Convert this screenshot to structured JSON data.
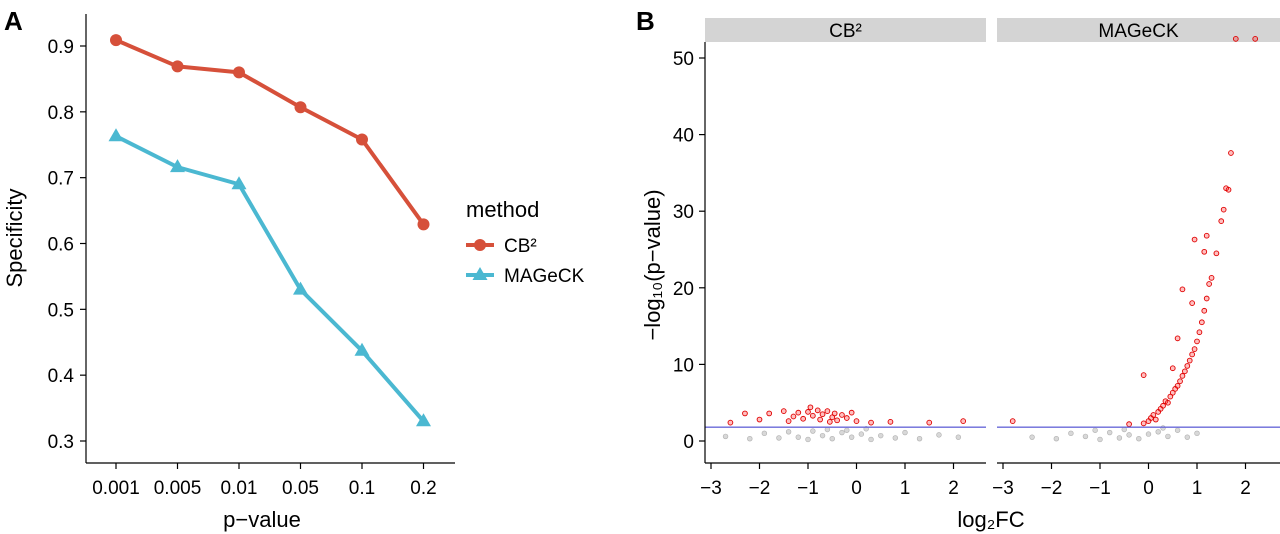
{
  "panels": {
    "a": "A",
    "b": "B"
  },
  "chart_data": [
    {
      "type": "line",
      "title": "",
      "xlabel": "p−value",
      "ylabel": "Specificity",
      "categories": [
        "0.001",
        "0.005",
        "0.01",
        "0.05",
        "0.1",
        "0.2"
      ],
      "ylim": [
        0.3,
        0.92
      ],
      "y_ticks": [
        "0.3",
        "0.4",
        "0.5",
        "0.6",
        "0.7",
        "0.8",
        "0.9"
      ],
      "legend": {
        "title": "method",
        "placement": "right"
      },
      "grid": false,
      "series": [
        {
          "name": "CB²",
          "color": "#d6503a",
          "marker": "circle",
          "values": [
            0.909,
            0.869,
            0.86,
            0.807,
            0.758,
            0.629
          ]
        },
        {
          "name": "MAGeCK",
          "color": "#4bb8d1",
          "marker": "triangle",
          "values": [
            0.763,
            0.716,
            0.69,
            0.53,
            0.437,
            0.33
          ]
        }
      ]
    },
    {
      "type": "scatter",
      "title": "",
      "xlabel": "log₂FC",
      "ylabel": "−log₁₀(p−value)",
      "x_ticks": [
        "−3",
        "−2",
        "−1",
        "0",
        "1",
        "2"
      ],
      "y_ticks": [
        "0",
        "10",
        "20",
        "30",
        "40",
        "50"
      ],
      "xlim": [
        -3.1,
        2.55
      ],
      "ylim": [
        -1.5,
        52.5
      ],
      "threshold": {
        "y": 1.8,
        "color": "#6a6ad8"
      },
      "grid": false,
      "facets": [
        {
          "label": "CB²",
          "significant": [
            [
              -2.3,
              3.6
            ],
            [
              -1.8,
              3.6
            ],
            [
              -1.5,
              3.9
            ],
            [
              -1.3,
              3.2
            ],
            [
              -1.2,
              3.7
            ],
            [
              -1.1,
              2.9
            ],
            [
              -1.0,
              3.8
            ],
            [
              -0.9,
              3.3
            ],
            [
              -0.8,
              4.0
            ],
            [
              -0.75,
              2.8
            ],
            [
              -0.7,
              3.5
            ],
            [
              -0.6,
              3.9
            ],
            [
              -0.5,
              3.1
            ],
            [
              -0.45,
              3.6
            ],
            [
              -0.4,
              2.7
            ],
            [
              -0.3,
              3.4
            ],
            [
              -0.2,
              3.0
            ],
            [
              -0.1,
              3.7
            ],
            [
              0.0,
              2.6
            ],
            [
              -2.0,
              2.8
            ],
            [
              -2.6,
              2.4
            ],
            [
              -0.95,
              4.4
            ],
            [
              -0.55,
              2.5
            ],
            [
              -1.4,
              2.6
            ],
            [
              0.3,
              2.4
            ],
            [
              0.7,
              2.5
            ],
            [
              1.5,
              2.4
            ],
            [
              2.2,
              2.6
            ]
          ],
          "nonsignificant": [
            [
              -2.7,
              0.6
            ],
            [
              -2.2,
              0.3
            ],
            [
              -1.9,
              1.0
            ],
            [
              -1.6,
              0.4
            ],
            [
              -1.4,
              1.2
            ],
            [
              -1.2,
              0.5
            ],
            [
              -1.0,
              0.2
            ],
            [
              -0.9,
              1.3
            ],
            [
              -0.7,
              0.7
            ],
            [
              -0.5,
              0.3
            ],
            [
              -0.3,
              1.1
            ],
            [
              -0.1,
              0.5
            ],
            [
              0.1,
              0.9
            ],
            [
              0.3,
              0.2
            ],
            [
              0.5,
              0.7
            ],
            [
              0.8,
              0.4
            ],
            [
              1.0,
              1.1
            ],
            [
              1.3,
              0.3
            ],
            [
              1.7,
              0.8
            ],
            [
              2.1,
              0.5
            ],
            [
              -0.6,
              1.5
            ],
            [
              -0.2,
              1.4
            ],
            [
              0.2,
              1.6
            ]
          ]
        },
        {
          "label": "MAGeCK",
          "significant": [
            [
              -2.8,
              2.6
            ],
            [
              -0.4,
              2.2
            ],
            [
              -0.1,
              2.3
            ],
            [
              0.0,
              2.6
            ],
            [
              0.05,
              3.0
            ],
            [
              0.1,
              3.4
            ],
            [
              0.15,
              2.8
            ],
            [
              0.2,
              3.8
            ],
            [
              0.25,
              4.2
            ],
            [
              0.3,
              4.6
            ],
            [
              0.35,
              5.2
            ],
            [
              0.4,
              5.0
            ],
            [
              0.45,
              5.8
            ],
            [
              0.5,
              6.3
            ],
            [
              0.55,
              6.8
            ],
            [
              0.6,
              7.2
            ],
            [
              0.65,
              7.8
            ],
            [
              0.7,
              8.5
            ],
            [
              0.75,
              9.1
            ],
            [
              0.8,
              9.8
            ],
            [
              0.85,
              10.5
            ],
            [
              0.9,
              11.3
            ],
            [
              0.95,
              12.0
            ],
            [
              1.0,
              13.0
            ],
            [
              1.05,
              14.2
            ],
            [
              1.1,
              15.5
            ],
            [
              1.15,
              17.0
            ],
            [
              1.2,
              18.6
            ],
            [
              1.25,
              20.5
            ],
            [
              1.3,
              21.3
            ],
            [
              1.4,
              24.5
            ],
            [
              1.5,
              28.7
            ],
            [
              1.55,
              30.2
            ],
            [
              1.6,
              33.0
            ],
            [
              1.65,
              32.8
            ],
            [
              1.7,
              37.6
            ],
            [
              1.2,
              26.8
            ],
            [
              1.15,
              24.7
            ],
            [
              0.95,
              26.3
            ],
            [
              0.7,
              19.8
            ],
            [
              0.6,
              13.4
            ],
            [
              0.5,
              9.5
            ],
            [
              0.9,
              18.0
            ],
            [
              1.8,
              52.5
            ],
            [
              2.2,
              52.5
            ],
            [
              -0.1,
              8.6
            ]
          ],
          "nonsignificant": [
            [
              -2.4,
              0.5
            ],
            [
              -1.9,
              0.3
            ],
            [
              -1.6,
              1.0
            ],
            [
              -1.3,
              0.6
            ],
            [
              -1.0,
              0.2
            ],
            [
              -0.8,
              1.1
            ],
            [
              -0.6,
              0.4
            ],
            [
              -0.4,
              0.8
            ],
            [
              -0.2,
              0.3
            ],
            [
              0.0,
              0.9
            ],
            [
              0.2,
              1.2
            ],
            [
              0.4,
              0.6
            ],
            [
              0.6,
              1.4
            ],
            [
              0.8,
              0.5
            ],
            [
              1.0,
              1.0
            ],
            [
              -1.1,
              1.4
            ],
            [
              -0.5,
              1.5
            ],
            [
              0.3,
              1.7
            ]
          ]
        }
      ]
    }
  ]
}
